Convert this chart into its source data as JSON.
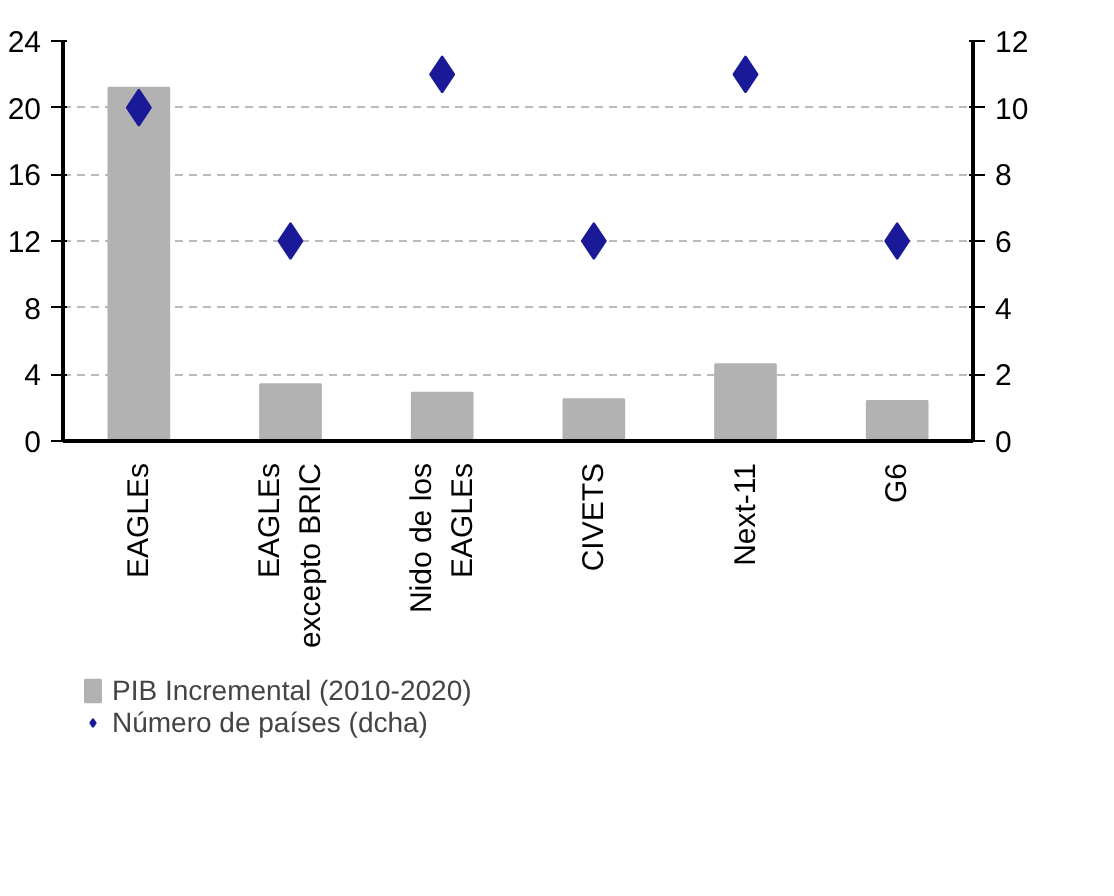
{
  "chart_data": {
    "type": "bar",
    "categories": [
      "EAGLEs",
      "EAGLEs\nexcepto BRIC",
      "Nido de los\nEAGLEs",
      "CIVETS",
      "Next-11",
      "G6"
    ],
    "series": [
      {
        "name": "PIB Incremental (2010-2020)",
        "color": "#b2b2b2",
        "values": [
          21.2,
          3.4,
          2.9,
          2.5,
          4.6,
          2.4
        ]
      },
      {
        "name": "Número de países (dcha)",
        "type": "scatter",
        "axis": "y2",
        "color": "#1a1a99",
        "values": [
          10,
          6,
          11,
          6,
          11,
          6
        ]
      }
    ],
    "ylim": [
      0,
      24
    ],
    "yticks": [
      0,
      4,
      8,
      12,
      16,
      20,
      24
    ],
    "y2lim": [
      0,
      12
    ],
    "y2ticks": [
      0,
      2,
      4,
      6,
      8,
      10,
      12
    ],
    "grid": "y",
    "legend": "bottom",
    "marker": "diamond"
  }
}
